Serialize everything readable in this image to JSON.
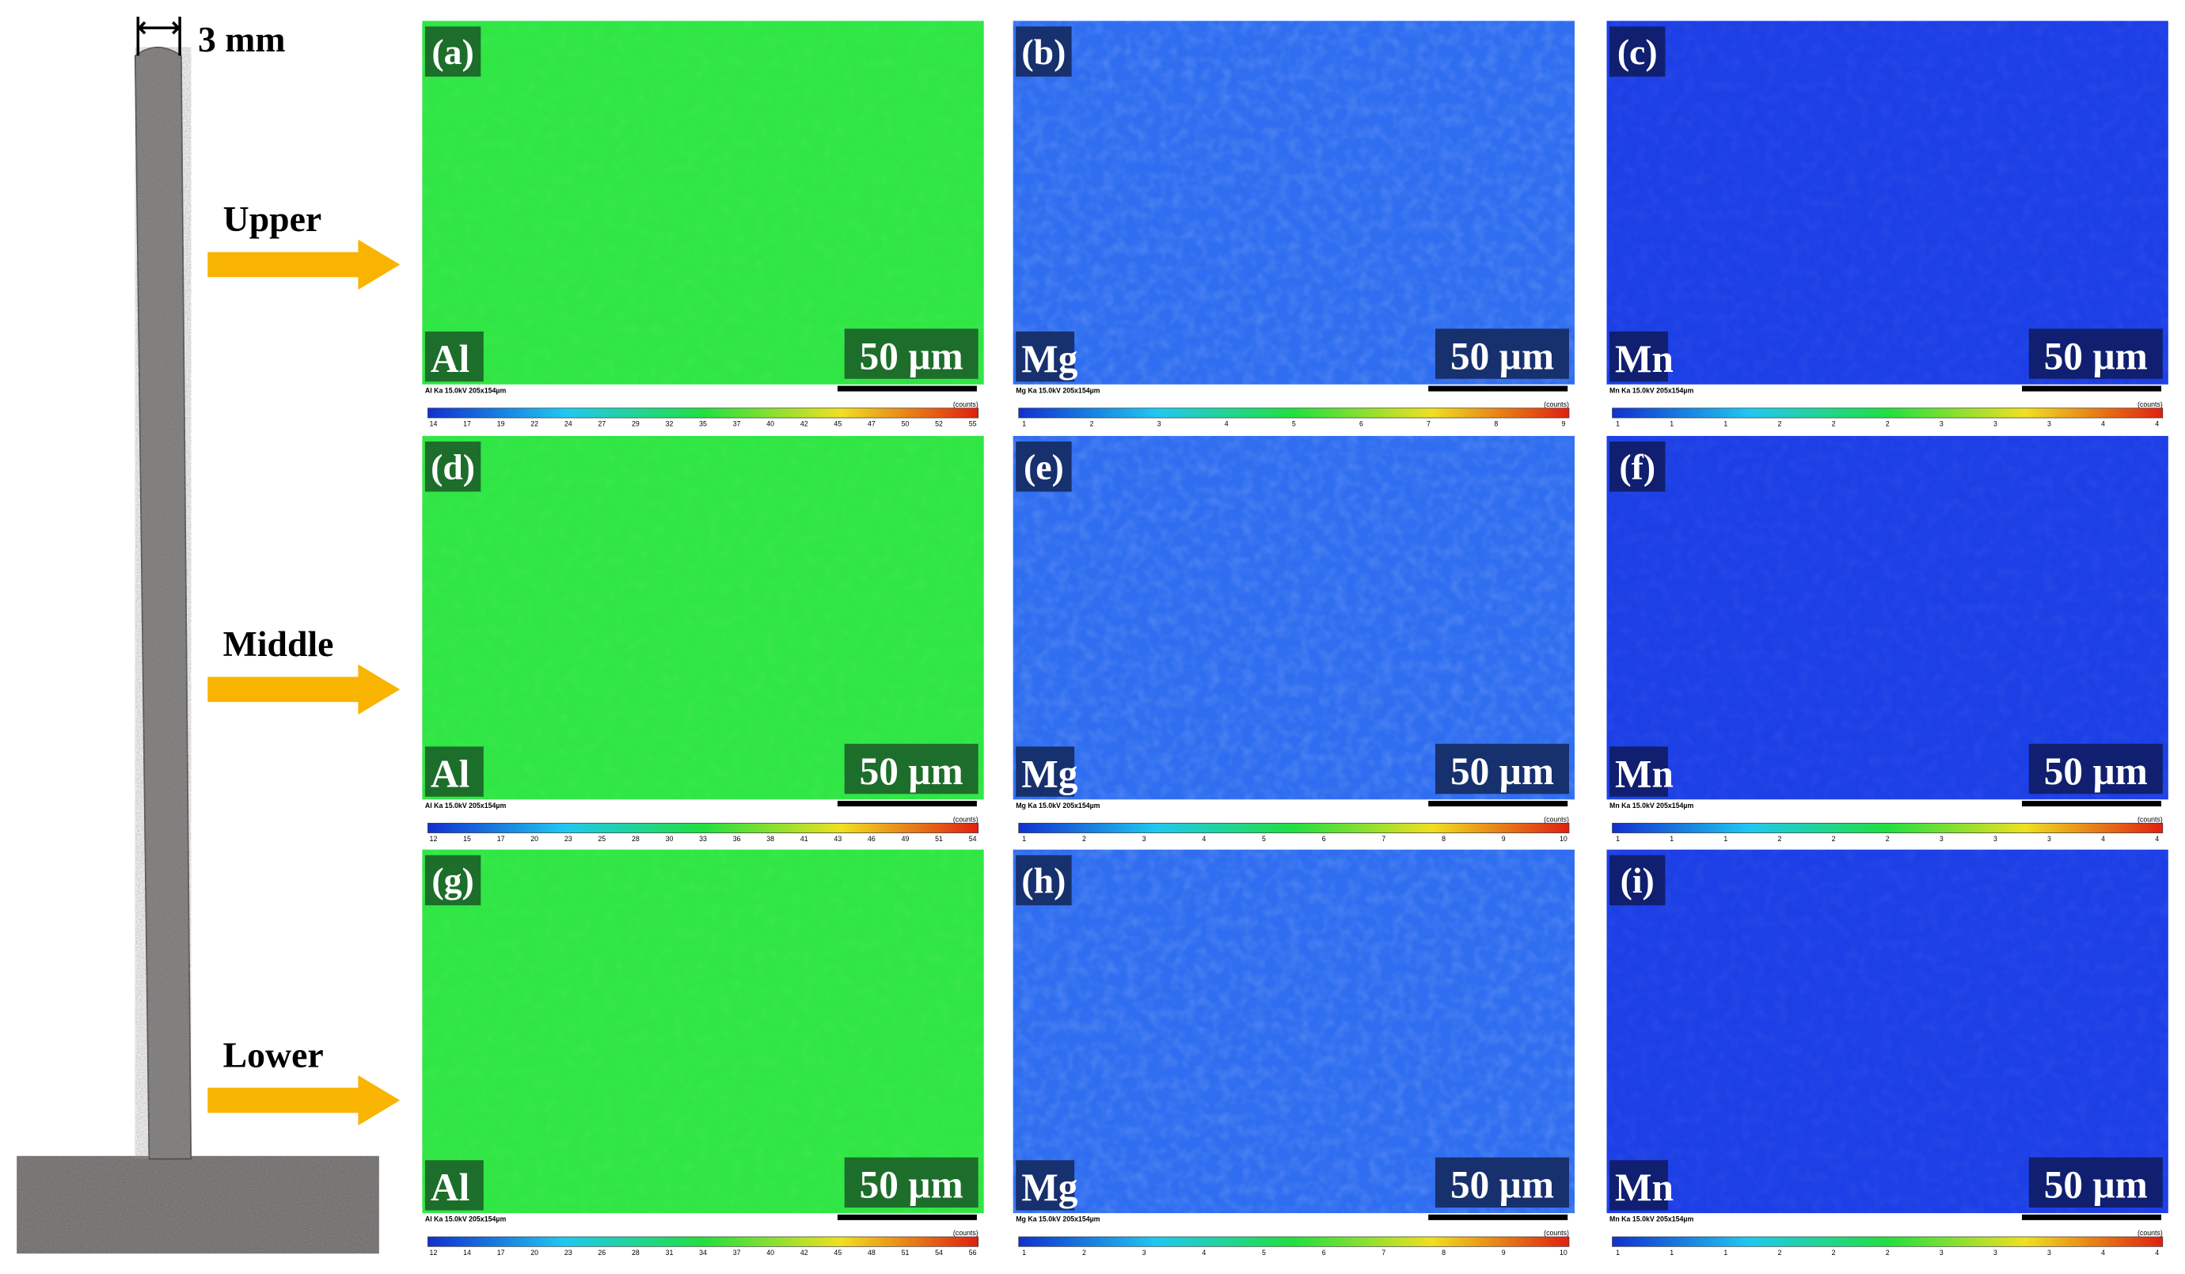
{
  "sample": {
    "width_label": "3 mm",
    "rows": [
      "Upper",
      "Middle",
      "Lower"
    ]
  },
  "panels": [
    {
      "letter": "(a)",
      "element": "Al",
      "scale": "50 µm",
      "caption": "Al Ka 15.0kV 205x154µm",
      "units": "(counts)",
      "colorbar": [
        14,
        17,
        19,
        22,
        24,
        27,
        29,
        32,
        35,
        37,
        40,
        42,
        45,
        47,
        50,
        52,
        55
      ]
    },
    {
      "letter": "(b)",
      "element": "Mg",
      "scale": "50 µm",
      "caption": "Mg Ka 15.0kV 205x154µm",
      "units": "(counts)",
      "colorbar": [
        1,
        2,
        3,
        4,
        5,
        6,
        7,
        8,
        9
      ]
    },
    {
      "letter": "(c)",
      "element": "Mn",
      "scale": "50 µm",
      "caption": "Mn Ka 15.0kV 205x154µm",
      "units": "(counts)",
      "colorbar": [
        1,
        1,
        1,
        2,
        2,
        2,
        3,
        3,
        3,
        4,
        4
      ]
    },
    {
      "letter": "(d)",
      "element": "Al",
      "scale": "50 µm",
      "caption": "Al Ka 15.0kV 205x154µm",
      "units": "(counts)",
      "colorbar": [
        12,
        15,
        17,
        20,
        23,
        25,
        28,
        30,
        33,
        36,
        38,
        41,
        43,
        46,
        49,
        51,
        54
      ]
    },
    {
      "letter": "(e)",
      "element": "Mg",
      "scale": "50 µm",
      "caption": "Mg Ka 15.0kV 205x154µm",
      "units": "(counts)",
      "colorbar": [
        1,
        2,
        3,
        4,
        5,
        6,
        7,
        8,
        9,
        10
      ]
    },
    {
      "letter": "(f)",
      "element": "Mn",
      "scale": "50 µm",
      "caption": "Mn Ka 15.0kV 205x154µm",
      "units": "(counts)",
      "colorbar": [
        1,
        1,
        1,
        2,
        2,
        2,
        3,
        3,
        3,
        4,
        4
      ]
    },
    {
      "letter": "(g)",
      "element": "Al",
      "scale": "50 µm",
      "caption": "Al Ka 15.0kV 205x154µm",
      "units": "(counts)",
      "colorbar": [
        12,
        14,
        17,
        20,
        23,
        26,
        28,
        31,
        34,
        37,
        40,
        42,
        45,
        48,
        51,
        54,
        56
      ]
    },
    {
      "letter": "(h)",
      "element": "Mg",
      "scale": "50 µm",
      "caption": "Mg Ka 15.0kV 205x154µm",
      "units": "(counts)",
      "colorbar": [
        1,
        2,
        3,
        4,
        5,
        6,
        7,
        8,
        9,
        10
      ]
    },
    {
      "letter": "(i)",
      "element": "Mn",
      "scale": "50 µm",
      "caption": "Mn Ka 15.0kV 205x154µm",
      "units": "(counts)",
      "colorbar": [
        1,
        1,
        1,
        2,
        2,
        2,
        3,
        3,
        3,
        4,
        4
      ]
    }
  ]
}
